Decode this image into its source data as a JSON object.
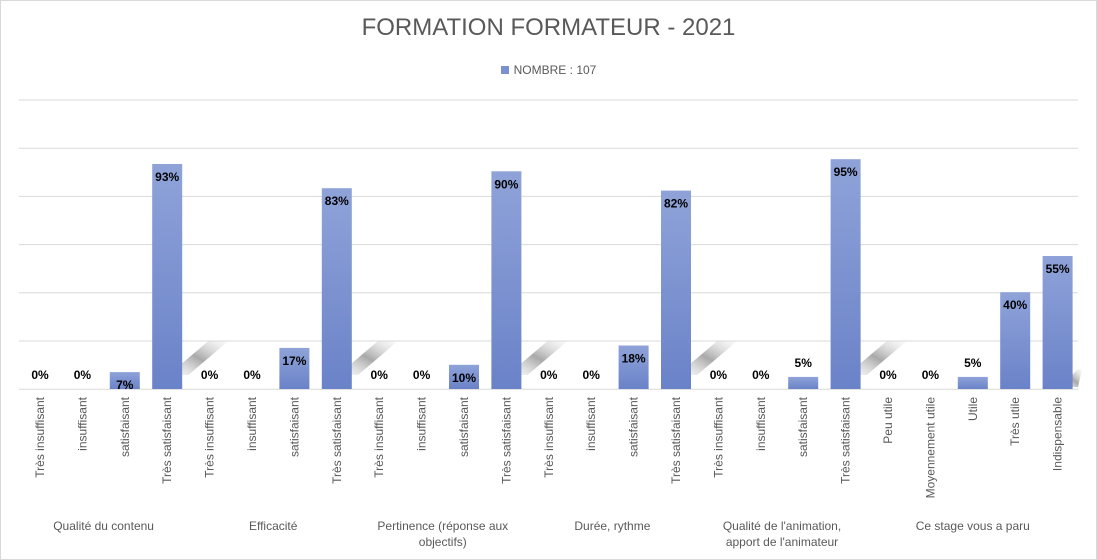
{
  "chart_data": {
    "type": "bar",
    "title": "FORMATION FORMATEUR - 2021",
    "legend_position": "top",
    "grid": true,
    "ylim": [
      0,
      100
    ],
    "series": [
      {
        "name": "NOMBRE : 107",
        "color": "#7a90d0"
      }
    ],
    "groups": [
      {
        "label": [
          "Qualité du contenu"
        ],
        "items": [
          {
            "category": "Très insuffisant",
            "value": 0,
            "label": "0%"
          },
          {
            "category": "insuffisant",
            "value": 0,
            "label": "0%"
          },
          {
            "category": "satisfaisant",
            "value": 7,
            "label": "7%"
          },
          {
            "category": "Très satisfaisant",
            "value": 93,
            "label": "93%"
          }
        ]
      },
      {
        "label": [
          "Efficacité"
        ],
        "items": [
          {
            "category": "Très insuffisant",
            "value": 0,
            "label": "0%"
          },
          {
            "category": "insuffisant",
            "value": 0,
            "label": "0%"
          },
          {
            "category": "satisfaisant",
            "value": 17,
            "label": "17%"
          },
          {
            "category": "Très satisfaisant",
            "value": 83,
            "label": "83%"
          }
        ]
      },
      {
        "label": [
          "Pertinence (réponse aux",
          "objectifs)"
        ],
        "items": [
          {
            "category": "Très insuffisant",
            "value": 0,
            "label": "0%"
          },
          {
            "category": "insuffisant",
            "value": 0,
            "label": "0%"
          },
          {
            "category": "satisfaisant",
            "value": 10,
            "label": "10%"
          },
          {
            "category": "Très satisfaisant",
            "value": 90,
            "label": "90%"
          }
        ]
      },
      {
        "label": [
          "Durée, rythme"
        ],
        "items": [
          {
            "category": "Très insuffisant",
            "value": 0,
            "label": "0%"
          },
          {
            "category": "insuffisant",
            "value": 0,
            "label": "0%"
          },
          {
            "category": "satisfaisant",
            "value": 18,
            "label": "18%"
          },
          {
            "category": "Très satisfaisant",
            "value": 82,
            "label": "82%"
          }
        ]
      },
      {
        "label": [
          "Qualité de l'animation,",
          "apport de l'animateur"
        ],
        "items": [
          {
            "category": "Très insuffisant",
            "value": 0,
            "label": "0%"
          },
          {
            "category": "insuffisant",
            "value": 0,
            "label": "0%"
          },
          {
            "category": "satisfaisant",
            "value": 5,
            "label": "5%"
          },
          {
            "category": "Très satisfaisant",
            "value": 95,
            "label": "95%"
          }
        ]
      },
      {
        "label": [
          "Ce stage vous a paru"
        ],
        "items": [
          {
            "category": "Peu utile",
            "value": 0,
            "label": "0%"
          },
          {
            "category": "Moyennement utile",
            "value": 0,
            "label": "0%"
          },
          {
            "category": "Utile",
            "value": 5,
            "label": "5%"
          },
          {
            "category": "Très utile",
            "value": 40,
            "label": "40%"
          },
          {
            "category": "Indispensable",
            "value": 55,
            "label": "55%"
          }
        ]
      }
    ]
  }
}
